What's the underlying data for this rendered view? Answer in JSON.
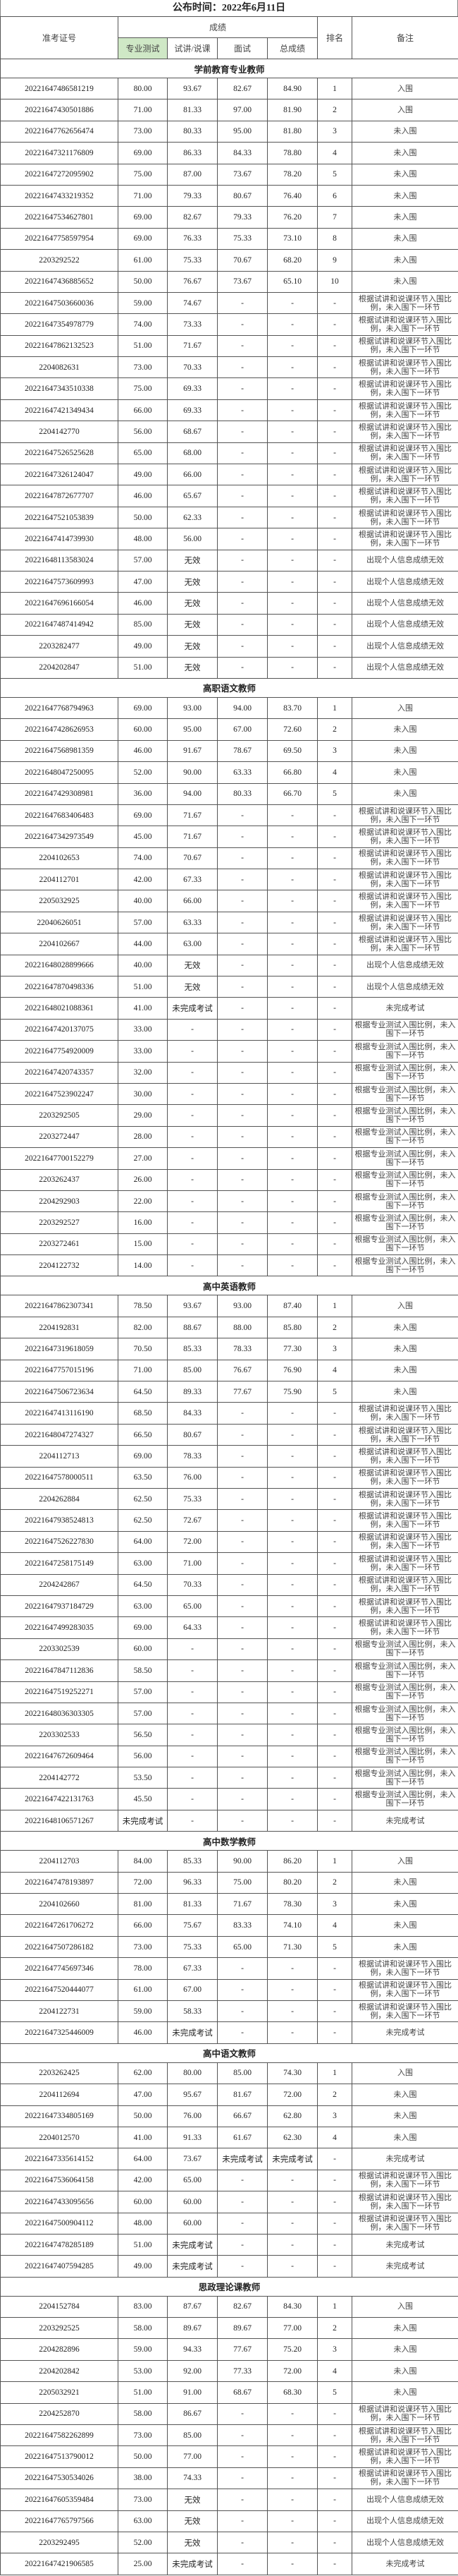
{
  "title": "公布时间：2022年6月11日",
  "header": {
    "id": "准考证号",
    "scores": "成绩",
    "professional": "专业测试",
    "lecture": "试讲/说课",
    "interview": "面试",
    "total": "总成绩",
    "rank": "排名",
    "note": "备注"
  },
  "sections": [
    {
      "title": "学前教育专业教师",
      "rows": [
        [
          "20221647486581219",
          "80.00",
          "93.67",
          "82.67",
          "84.90",
          "1",
          "入围"
        ],
        [
          "20221647430501886",
          "71.00",
          "81.33",
          "97.00",
          "81.90",
          "2",
          "入围"
        ],
        [
          "20221647762656474",
          "73.00",
          "80.33",
          "95.00",
          "81.80",
          "3",
          "未入围"
        ],
        [
          "20221647321176809",
          "69.00",
          "86.33",
          "84.33",
          "78.80",
          "4",
          "未入围"
        ],
        [
          "20221647272095902",
          "75.00",
          "87.00",
          "73.67",
          "78.20",
          "5",
          "未入围"
        ],
        [
          "20221647433219352",
          "71.00",
          "79.33",
          "80.67",
          "76.40",
          "6",
          "未入围"
        ],
        [
          "20221647534627801",
          "69.00",
          "82.67",
          "79.33",
          "76.20",
          "7",
          "未入围"
        ],
        [
          "20221647758597954",
          "69.00",
          "76.33",
          "75.33",
          "73.10",
          "8",
          "未入围"
        ],
        [
          "2203292522",
          "61.00",
          "75.33",
          "70.67",
          "68.20",
          "9",
          "未入围"
        ],
        [
          "20221647436885652",
          "50.00",
          "76.67",
          "73.67",
          "65.10",
          "10",
          "未入围"
        ],
        [
          "20221647503660036",
          "59.00",
          "74.67",
          "-",
          "-",
          "-",
          "根据试讲和说课环节入围比例，未入围下一环节"
        ],
        [
          "20221647354978779",
          "74.00",
          "73.33",
          "-",
          "-",
          "-",
          "根据试讲和说课环节入围比例，未入围下一环节"
        ],
        [
          "20221647862132523",
          "51.00",
          "71.67",
          "-",
          "-",
          "-",
          "根据试讲和说课环节入围比例，未入围下一环节"
        ],
        [
          "2204082631",
          "73.00",
          "70.33",
          "-",
          "-",
          "-",
          "根据试讲和说课环节入围比例，未入围下一环节"
        ],
        [
          "20221647343510338",
          "75.00",
          "69.33",
          "-",
          "-",
          "-",
          "根据试讲和说课环节入围比例，未入围下一环节"
        ],
        [
          "20221647421349434",
          "66.00",
          "69.33",
          "-",
          "-",
          "-",
          "根据试讲和说课环节入围比例，未入围下一环节"
        ],
        [
          "2204142770",
          "56.00",
          "68.67",
          "-",
          "-",
          "-",
          "根据试讲和说课环节入围比例，未入围下一环节"
        ],
        [
          "20221647526525628",
          "65.00",
          "68.00",
          "-",
          "-",
          "-",
          "根据试讲和说课环节入围比例，未入围下一环节"
        ],
        [
          "20221647326124047",
          "49.00",
          "66.00",
          "-",
          "-",
          "-",
          "根据试讲和说课环节入围比例，未入围下一环节"
        ],
        [
          "20221647872677707",
          "46.00",
          "65.67",
          "-",
          "-",
          "-",
          "根据试讲和说课环节入围比例，未入围下一环节"
        ],
        [
          "20221647521053839",
          "50.00",
          "62.33",
          "-",
          "-",
          "-",
          "根据试讲和说课环节入围比例，未入围下一环节"
        ],
        [
          "20221647414739930",
          "48.00",
          "56.00",
          "-",
          "-",
          "-",
          "根据试讲和说课环节入围比例，未入围下一环节"
        ],
        [
          "20221648113583024",
          "57.00",
          "无效",
          "-",
          "-",
          "-",
          "出现个人信息成绩无效"
        ],
        [
          "20221647573609993",
          "47.00",
          "无效",
          "-",
          "-",
          "-",
          "出现个人信息成绩无效"
        ],
        [
          "20221647696166054",
          "46.00",
          "无效",
          "-",
          "-",
          "-",
          "出现个人信息成绩无效"
        ],
        [
          "20221647487414942",
          "85.00",
          "无效",
          "-",
          "-",
          "-",
          "出现个人信息成绩无效"
        ],
        [
          "2203282477",
          "49.00",
          "无效",
          "-",
          "-",
          "-",
          "出现个人信息成绩无效"
        ],
        [
          "2204202847",
          "51.00",
          "无效",
          "-",
          "-",
          "-",
          "出现个人信息成绩无效"
        ]
      ]
    },
    {
      "title": "高职语文教师",
      "rows": [
        [
          "20221647768794963",
          "69.00",
          "93.00",
          "94.00",
          "83.70",
          "1",
          "入围"
        ],
        [
          "20221647428626953",
          "60.00",
          "95.00",
          "67.00",
          "72.60",
          "2",
          "未入围"
        ],
        [
          "20221647568981359",
          "46.00",
          "91.67",
          "78.67",
          "69.50",
          "3",
          "未入围"
        ],
        [
          "20221648047250095",
          "52.00",
          "90.00",
          "63.33",
          "66.80",
          "4",
          "未入围"
        ],
        [
          "20221647429308981",
          "36.00",
          "94.00",
          "80.33",
          "66.70",
          "5",
          "未入围"
        ],
        [
          "20221647683406483",
          "69.00",
          "71.67",
          "-",
          "-",
          "-",
          "根据试讲和说课环节入围比例，未入围下一环节"
        ],
        [
          "20221647342973549",
          "45.00",
          "71.67",
          "-",
          "-",
          "-",
          "根据试讲和说课环节入围比例，未入围下一环节"
        ],
        [
          "2204102653",
          "74.00",
          "70.67",
          "-",
          "-",
          "-",
          "根据试讲和说课环节入围比例，未入围下一环节"
        ],
        [
          "2204112701",
          "42.00",
          "67.33",
          "-",
          "-",
          "-",
          "根据试讲和说课环节入围比例，未入围下一环节"
        ],
        [
          "2205032925",
          "40.00",
          "66.00",
          "-",
          "-",
          "-",
          "根据试讲和说课环节入围比例，未入围下一环节"
        ],
        [
          "22040626051",
          "57.00",
          "63.33",
          "-",
          "-",
          "-",
          "根据试讲和说课环节入围比例，未入围下一环节"
        ],
        [
          "2204102667",
          "44.00",
          "63.00",
          "-",
          "-",
          "-",
          "根据试讲和说课环节入围比例，未入围下一环节"
        ],
        [
          "20221648028899666",
          "40.00",
          "无效",
          "-",
          "-",
          "-",
          "出现个人信息成绩无效"
        ],
        [
          "20221647870498336",
          "51.00",
          "无效",
          "-",
          "-",
          "-",
          "出现个人信息成绩无效"
        ],
        [
          "20221648021088361",
          "41.00",
          "未完成考试",
          "-",
          "-",
          "-",
          "未完成考试"
        ],
        [
          "20221647420137075",
          "33.00",
          "-",
          "-",
          "-",
          "-",
          "根据专业测试入围比例，未入围下一环节"
        ],
        [
          "20221647754920009",
          "33.00",
          "-",
          "-",
          "-",
          "-",
          "根据专业测试入围比例，未入围下一环节"
        ],
        [
          "20221647420743357",
          "32.00",
          "-",
          "-",
          "-",
          "-",
          "根据专业测试入围比例，未入围下一环节"
        ],
        [
          "20221647523902247",
          "30.00",
          "-",
          "-",
          "-",
          "-",
          "根据专业测试入围比例，未入围下一环节"
        ],
        [
          "2203292505",
          "29.00",
          "-",
          "-",
          "-",
          "-",
          "根据专业测试入围比例，未入围下一环节"
        ],
        [
          "2203272447",
          "28.00",
          "-",
          "-",
          "-",
          "-",
          "根据专业测试入围比例，未入围下一环节"
        ],
        [
          "20221647700152279",
          "27.00",
          "-",
          "-",
          "-",
          "-",
          "根据专业测试入围比例，未入围下一环节"
        ],
        [
          "2203262437",
          "26.00",
          "-",
          "-",
          "-",
          "-",
          "根据专业测试入围比例，未入围下一环节"
        ],
        [
          "2204292903",
          "22.00",
          "-",
          "-",
          "-",
          "-",
          "根据专业测试入围比例，未入围下一环节"
        ],
        [
          "2203292527",
          "16.00",
          "-",
          "-",
          "-",
          "-",
          "根据专业测试入围比例，未入围下一环节"
        ],
        [
          "2203272461",
          "15.00",
          "-",
          "-",
          "-",
          "-",
          "根据专业测试入围比例，未入围下一环节"
        ],
        [
          "2204122732",
          "14.00",
          "-",
          "-",
          "-",
          "-",
          "根据专业测试入围比例，未入围下一环节"
        ]
      ]
    },
    {
      "title": "高中英语教师",
      "rows": [
        [
          "20221647862307341",
          "78.50",
          "93.67",
          "93.00",
          "87.40",
          "1",
          "入围"
        ],
        [
          "2204192831",
          "82.00",
          "88.67",
          "88.00",
          "85.80",
          "2",
          "未入围"
        ],
        [
          "20221647319618059",
          "70.50",
          "85.33",
          "78.33",
          "77.30",
          "3",
          "未入围"
        ],
        [
          "20221647757015196",
          "71.00",
          "85.00",
          "76.67",
          "76.90",
          "4",
          "未入围"
        ],
        [
          "20221647506723634",
          "64.50",
          "89.33",
          "77.67",
          "75.90",
          "5",
          "未入围"
        ],
        [
          "20221647413116190",
          "68.50",
          "84.33",
          "-",
          "-",
          "-",
          "根据试讲和说课环节入围比例，未入围下一环节"
        ],
        [
          "20221648047274327",
          "66.50",
          "80.67",
          "-",
          "-",
          "-",
          "根据试讲和说课环节入围比例，未入围下一环节"
        ],
        [
          "2204112713",
          "69.00",
          "78.33",
          "-",
          "-",
          "-",
          "根据试讲和说课环节入围比例，未入围下一环节"
        ],
        [
          "20221647578000511",
          "63.50",
          "76.00",
          "-",
          "-",
          "-",
          "根据试讲和说课环节入围比例，未入围下一环节"
        ],
        [
          "2204262884",
          "62.50",
          "75.33",
          "-",
          "-",
          "-",
          "根据试讲和说课环节入围比例，未入围下一环节"
        ],
        [
          "20221647938524813",
          "62.50",
          "72.67",
          "-",
          "-",
          "-",
          "根据试讲和说课环节入围比例，未入围下一环节"
        ],
        [
          "20221647526227830",
          "64.00",
          "72.00",
          "-",
          "-",
          "-",
          "根据试讲和说课环节入围比例，未入围下一环节"
        ],
        [
          "20221647258175149",
          "63.00",
          "71.00",
          "-",
          "-",
          "-",
          "根据试讲和说课环节入围比例，未入围下一环节"
        ],
        [
          "2204242867",
          "64.50",
          "70.33",
          "-",
          "-",
          "-",
          "根据试讲和说课环节入围比例，未入围下一环节"
        ],
        [
          "20221647937184729",
          "63.00",
          "65.00",
          "-",
          "-",
          "-",
          "根据试讲和说课环节入围比例，未入围下一环节"
        ],
        [
          "20221647499283035",
          "69.00",
          "64.33",
          "-",
          "-",
          "-",
          "根据试讲和说课环节入围比例，未入围下一环节"
        ],
        [
          "2203302539",
          "60.00",
          "-",
          "-",
          "-",
          "-",
          "根据专业测试入围比例，未入围下一环节"
        ],
        [
          "20221647847112836",
          "58.50",
          "-",
          "-",
          "-",
          "-",
          "根据专业测试入围比例，未入围下一环节"
        ],
        [
          "20221647519252271",
          "57.00",
          "-",
          "-",
          "-",
          "-",
          "根据专业测试入围比例，未入围下一环节"
        ],
        [
          "20221648036303305",
          "57.00",
          "-",
          "-",
          "-",
          "-",
          "根据专业测试入围比例，未入围下一环节"
        ],
        [
          "2203302533",
          "56.50",
          "-",
          "-",
          "-",
          "-",
          "根据专业测试入围比例，未入围下一环节"
        ],
        [
          "20221647672609464",
          "56.00",
          "-",
          "-",
          "-",
          "-",
          "根据专业测试入围比例，未入围下一环节"
        ],
        [
          "2204142772",
          "53.50",
          "-",
          "-",
          "-",
          "-",
          "根据专业测试入围比例，未入围下一环节"
        ],
        [
          "20221647422131763",
          "45.50",
          "-",
          "-",
          "-",
          "-",
          "根据专业测试入围比例，未入围下一环节"
        ],
        [
          "20221648106571267",
          "未完成考试",
          "-",
          "-",
          "-",
          "-",
          "未完成考试"
        ]
      ]
    },
    {
      "title": "高中数学教师",
      "rows": [
        [
          "2204112703",
          "84.00",
          "85.33",
          "90.00",
          "86.20",
          "1",
          "入围"
        ],
        [
          "20221647478193897",
          "72.00",
          "96.33",
          "75.00",
          "80.20",
          "2",
          "未入围"
        ],
        [
          "2204102660",
          "81.00",
          "81.33",
          "71.67",
          "78.30",
          "3",
          "未入围"
        ],
        [
          "20221647261706272",
          "66.00",
          "75.67",
          "83.33",
          "74.10",
          "4",
          "未入围"
        ],
        [
          "20221647507286182",
          "73.00",
          "75.33",
          "65.00",
          "71.30",
          "5",
          "未入围"
        ],
        [
          "20221647745697346",
          "78.00",
          "67.33",
          "-",
          "-",
          "-",
          "根据试讲和说课环节入围比例，未入围下一环节"
        ],
        [
          "20221647520444077",
          "61.00",
          "67.00",
          "-",
          "-",
          "-",
          "根据试讲和说课环节入围比例，未入围下一环节"
        ],
        [
          "2204122731",
          "59.00",
          "58.33",
          "-",
          "-",
          "-",
          "根据试讲和说课环节入围比例，未入围下一环节"
        ],
        [
          "20221647325446009",
          "46.00",
          "未完成考试",
          "-",
          "-",
          "-",
          "未完成考试"
        ]
      ]
    },
    {
      "title": "高中语文教师",
      "rows": [
        [
          "2203262425",
          "62.00",
          "80.00",
          "85.00",
          "74.30",
          "1",
          "入围"
        ],
        [
          "2204112694",
          "47.00",
          "95.67",
          "81.67",
          "72.00",
          "2",
          "未入围"
        ],
        [
          "20221647334805169",
          "50.00",
          "76.00",
          "66.67",
          "62.80",
          "3",
          "未入围"
        ],
        [
          "2204012570",
          "41.00",
          "91.33",
          "61.67",
          "62.30",
          "4",
          "未入围"
        ],
        [
          "20221647335614152",
          "64.00",
          "73.67",
          "未完成考试",
          "未完成考试",
          "-",
          "未完成考试"
        ],
        [
          "20221647536064158",
          "42.00",
          "65.00",
          "-",
          "-",
          "-",
          "根据试讲和说课环节入围比例，未入围下一环节"
        ],
        [
          "20221647433095656",
          "60.00",
          "60.00",
          "-",
          "-",
          "-",
          "根据试讲和说课环节入围比例，未入围下一环节"
        ],
        [
          "20221647500904112",
          "48.00",
          "60.00",
          "-",
          "-",
          "-",
          "根据试讲和说课环节入围比例，未入围下一环节"
        ],
        [
          "20221647478285189",
          "51.00",
          "未完成考试",
          "-",
          "-",
          "-",
          "未完成考试"
        ],
        [
          "20221647407594285",
          "49.00",
          "未完成考试",
          "-",
          "-",
          "-",
          "未完成考试"
        ]
      ]
    },
    {
      "title": "思政理论课教师",
      "rows": [
        [
          "2204152784",
          "83.00",
          "87.67",
          "82.67",
          "84.30",
          "1",
          "入围"
        ],
        [
          "2203292525",
          "58.00",
          "89.67",
          "89.67",
          "77.00",
          "2",
          "未入围"
        ],
        [
          "2204282896",
          "59.00",
          "94.33",
          "77.67",
          "75.20",
          "3",
          "未入围"
        ],
        [
          "2204202842",
          "53.00",
          "92.00",
          "77.33",
          "72.00",
          "4",
          "未入围"
        ],
        [
          "2205032921",
          "51.00",
          "91.00",
          "68.67",
          "68.30",
          "5",
          "未入围"
        ],
        [
          "2204252870",
          "58.00",
          "86.67",
          "-",
          "-",
          "-",
          "根据试讲和说课环节入围比例，未入围下一环节"
        ],
        [
          "20221647582262899",
          "73.00",
          "85.00",
          "-",
          "-",
          "-",
          "根据试讲和说课环节入围比例，未入围下一环节"
        ],
        [
          "20221647513790012",
          "50.00",
          "77.00",
          "-",
          "-",
          "-",
          "根据试讲和说课环节入围比例，未入围下一环节"
        ],
        [
          "20221647530534026",
          "38.00",
          "74.33",
          "-",
          "-",
          "-",
          "根据试讲和说课环节入围比例，未入围下一环节"
        ],
        [
          "20221647605359484",
          "73.00",
          "无效",
          "-",
          "-",
          "-",
          "出现个人信息成绩无效"
        ],
        [
          "20221647765797566",
          "63.00",
          "无效",
          "-",
          "-",
          "-",
          "出现个人信息成绩无效"
        ],
        [
          "2203292495",
          "52.00",
          "无效",
          "-",
          "-",
          "-",
          "出现个人信息成绩无效"
        ],
        [
          "20221647421906585",
          "25.00",
          "未完成考试",
          "-",
          "-",
          "-",
          "未完成考试"
        ]
      ]
    }
  ],
  "colors": {
    "highlight_header": "#cfe8c6",
    "border": "#555555"
  }
}
